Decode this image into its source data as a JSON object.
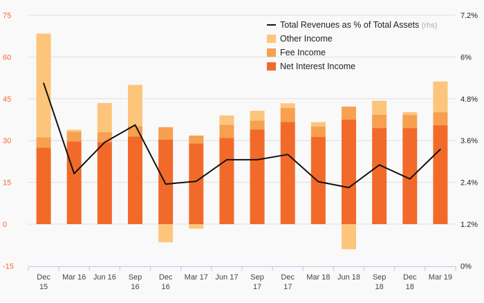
{
  "chart_data": {
    "type": "bar",
    "stacked": true,
    "categories": [
      "Dec\n15",
      "Mar 16",
      "Jun 16",
      "Sep\n16",
      "Dec\n16",
      "Mar 17",
      "Jun 17",
      "Sep\n17",
      "Dec\n17",
      "Mar 18",
      "Jun 18",
      "Sep\n18",
      "Dec\n18",
      "Mar 19"
    ],
    "series": [
      {
        "name": "Net Interest Income",
        "color": "#f26a2a",
        "values": [
          27.5,
          29.7,
          29.5,
          31.5,
          30.3,
          29.0,
          31.0,
          34.0,
          36.7,
          31.3,
          37.5,
          34.5,
          34.5,
          35.5
        ]
      },
      {
        "name": "Fee Income",
        "color": "#f7a050",
        "values": [
          3.7,
          3.5,
          3.5,
          3.7,
          4.5,
          2.8,
          4.7,
          3.2,
          5.0,
          3.8,
          4.7,
          4.8,
          4.7,
          4.7
        ]
      },
      {
        "name": "Other Income",
        "color": "#fdc57c",
        "values": [
          37.2,
          0.7,
          10.5,
          14.8,
          -6.5,
          -1.6,
          3.3,
          3.5,
          1.7,
          1.5,
          -9.0,
          5.0,
          1.0,
          11.0
        ]
      }
    ],
    "line_series": {
      "name": "Total Revenues as % of Total Assets",
      "name_suffix": "(rhs)",
      "color": "#111111",
      "values": [
        5.25,
        2.65,
        3.55,
        4.05,
        2.35,
        2.43,
        3.05,
        3.05,
        3.2,
        2.42,
        2.25,
        2.9,
        2.5,
        3.35
      ]
    },
    "y_left": {
      "ylim": [
        -15,
        75
      ],
      "ticks": [
        "-15",
        "0",
        "15",
        "30",
        "45",
        "60",
        "75"
      ],
      "values": [
        -15,
        0,
        15,
        30,
        45,
        60,
        75
      ]
    },
    "y_right": {
      "ylim": [
        0,
        7.2
      ],
      "ticks": [
        "0%",
        "1.2%",
        "2.4%",
        "3.6%",
        "4.8%",
        "6%",
        "7.2%"
      ],
      "values": [
        0,
        1.2,
        2.4,
        3.6,
        4.8,
        6,
        7.2
      ]
    },
    "legend_position": "top-right",
    "grid": true
  },
  "colors": {
    "accent": "#f26a2a",
    "background": "#f9f9f9",
    "grid": "#dedede",
    "axis": "#b9c3e6"
  }
}
